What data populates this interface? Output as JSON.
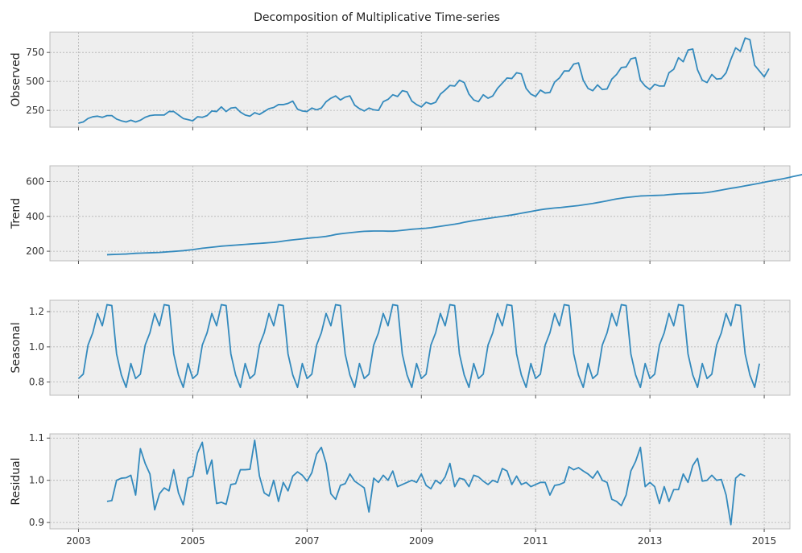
{
  "chart_data": {
    "type": "line",
    "title": "Decomposition of Multiplicative Time-series",
    "x_start": "2003-01",
    "x_step": "month",
    "x_ticks": [
      "2003",
      "2005",
      "2007",
      "2009",
      "2011",
      "2013",
      "2015"
    ],
    "xlim": [
      2002.5,
      2015.45
    ],
    "line_color": "#348abd",
    "grid": true,
    "panels": [
      {
        "ylabel": "Observed",
        "ylim": [
          105,
          925
        ],
        "yticks": [
          "250",
          "500",
          "750"
        ],
        "ytick_values": [
          250,
          500,
          750
        ],
        "x_offset_months": 0,
        "values": [
          140,
          150,
          180,
          195,
          200,
          190,
          205,
          205,
          175,
          160,
          150,
          165,
          150,
          165,
          190,
          205,
          210,
          210,
          210,
          240,
          240,
          210,
          180,
          170,
          160,
          195,
          190,
          205,
          245,
          240,
          280,
          240,
          270,
          275,
          235,
          210,
          200,
          230,
          215,
          240,
          265,
          275,
          300,
          300,
          310,
          330,
          260,
          245,
          240,
          270,
          255,
          270,
          325,
          355,
          375,
          340,
          365,
          375,
          295,
          265,
          245,
          270,
          255,
          250,
          325,
          345,
          385,
          370,
          420,
          410,
          330,
          300,
          280,
          320,
          305,
          320,
          390,
          425,
          465,
          460,
          510,
          490,
          390,
          340,
          325,
          385,
          355,
          375,
          440,
          485,
          530,
          525,
          575,
          565,
          440,
          390,
          370,
          425,
          400,
          405,
          495,
          530,
          590,
          590,
          650,
          660,
          510,
          440,
          420,
          470,
          430,
          435,
          520,
          560,
          620,
          625,
          695,
          705,
          510,
          460,
          430,
          475,
          460,
          460,
          575,
          605,
          705,
          670,
          770,
          780,
          600,
          510,
          490,
          560,
          520,
          525,
          575,
          690,
          790,
          760,
          875,
          860,
          640,
          590,
          540,
          610
        ]
      },
      {
        "ylabel": "Trend",
        "ylim": [
          145,
          690
        ],
        "yticks": [
          "200",
          "400",
          "600"
        ],
        "ytick_values": [
          200,
          400,
          600
        ],
        "x_offset_months": 6,
        "values": [
          180,
          181,
          182,
          183,
          184,
          186,
          188,
          189,
          190,
          191,
          192,
          193,
          195,
          197,
          199,
          201,
          203,
          206,
          209,
          213,
          217,
          220,
          223,
          226,
          229,
          231,
          233,
          235,
          237,
          239,
          241,
          243,
          245,
          247,
          249,
          251,
          254,
          258,
          262,
          265,
          268,
          271,
          274,
          277,
          279,
          282,
          285,
          290,
          296,
          300,
          303,
          306,
          309,
          312,
          314,
          315,
          316,
          316,
          316,
          315,
          315,
          317,
          320,
          323,
          326,
          328,
          330,
          332,
          335,
          339,
          343,
          347,
          351,
          355,
          360,
          366,
          371,
          376,
          380,
          384,
          388,
          392,
          396,
          400,
          404,
          408,
          413,
          418,
          423,
          428,
          433,
          438,
          442,
          445,
          448,
          450,
          453,
          456,
          459,
          462,
          466,
          470,
          474,
          479,
          484,
          489,
          495,
          500,
          504,
          508,
          511,
          514,
          517,
          518,
          519,
          520,
          521,
          522,
          525,
          527,
          529,
          530,
          531,
          532,
          533,
          534,
          537,
          541,
          546,
          551,
          556,
          561,
          565,
          570,
          575,
          580,
          585,
          590,
          596,
          601,
          606,
          611,
          616,
          622,
          628,
          634,
          640,
          645,
          650,
          654,
          658,
          662
        ]
      },
      {
        "ylabel": "Seasonal",
        "ylim": [
          0.725,
          1.265
        ],
        "yticks": [
          "0.8",
          "1.0",
          "1.2"
        ],
        "ytick_values": [
          0.8,
          1.0,
          1.2
        ],
        "x_offset_months": 0,
        "values": [
          0.82,
          0.845,
          1.01,
          1.08,
          1.19,
          1.12,
          1.24,
          1.235,
          0.96,
          0.84,
          0.77,
          0.905,
          0.82,
          0.845,
          1.01,
          1.08,
          1.19,
          1.12,
          1.24,
          1.235,
          0.96,
          0.84,
          0.77,
          0.905,
          0.82,
          0.845,
          1.01,
          1.08,
          1.19,
          1.12,
          1.24,
          1.235,
          0.96,
          0.84,
          0.77,
          0.905,
          0.82,
          0.845,
          1.01,
          1.08,
          1.19,
          1.12,
          1.24,
          1.235,
          0.96,
          0.84,
          0.77,
          0.905,
          0.82,
          0.845,
          1.01,
          1.08,
          1.19,
          1.12,
          1.24,
          1.235,
          0.96,
          0.84,
          0.77,
          0.905,
          0.82,
          0.845,
          1.01,
          1.08,
          1.19,
          1.12,
          1.24,
          1.235,
          0.96,
          0.84,
          0.77,
          0.905,
          0.82,
          0.845,
          1.01,
          1.08,
          1.19,
          1.12,
          1.24,
          1.235,
          0.96,
          0.84,
          0.77,
          0.905,
          0.82,
          0.845,
          1.01,
          1.08,
          1.19,
          1.12,
          1.24,
          1.235,
          0.96,
          0.84,
          0.77,
          0.905,
          0.82,
          0.845,
          1.01,
          1.08,
          1.19,
          1.12,
          1.24,
          1.235,
          0.96,
          0.84,
          0.77,
          0.905,
          0.82,
          0.845,
          1.01,
          1.08,
          1.19,
          1.12,
          1.24,
          1.235,
          0.96,
          0.84,
          0.77,
          0.905,
          0.82,
          0.845,
          1.01,
          1.08,
          1.19,
          1.12,
          1.24,
          1.235,
          0.96,
          0.84,
          0.77,
          0.905,
          0.82,
          0.845,
          1.01,
          1.08,
          1.19,
          1.12,
          1.24,
          1.235,
          0.96,
          0.84,
          0.77,
          0.905
        ]
      },
      {
        "ylabel": "Residual",
        "ylim": [
          0.885,
          1.11
        ],
        "yticks": [
          "0.9",
          "1.0",
          "1.1"
        ],
        "ytick_values": [
          0.9,
          1.0,
          1.1
        ],
        "x_offset_months": 6,
        "values": [
          0.95,
          0.952,
          1.0,
          1.005,
          1.006,
          1.012,
          0.965,
          1.075,
          1.04,
          1.015,
          0.93,
          0.968,
          0.982,
          0.975,
          1.025,
          0.97,
          0.942,
          1.005,
          1.01,
          1.065,
          1.09,
          1.015,
          1.048,
          0.945,
          0.948,
          0.943,
          0.99,
          0.992,
          1.025,
          1.025,
          1.026,
          1.095,
          1.01,
          0.97,
          0.963,
          1.0,
          0.95,
          0.995,
          0.975,
          1.01,
          1.02,
          1.012,
          0.998,
          1.018,
          1.062,
          1.078,
          1.04,
          0.968,
          0.955,
          0.988,
          0.992,
          1.015,
          0.998,
          0.99,
          0.982,
          0.925,
          1.005,
          0.995,
          1.012,
          1.0,
          1.022,
          0.985,
          0.99,
          0.995,
          1.0,
          0.995,
          1.015,
          0.988,
          0.98,
          1.0,
          0.992,
          1.008,
          1.04,
          0.985,
          1.005,
          1.002,
          0.985,
          1.012,
          1.008,
          0.998,
          0.99,
          1.0,
          0.995,
          1.028,
          1.022,
          0.99,
          1.01,
          0.99,
          0.995,
          0.985,
          0.99,
          0.995,
          0.995,
          0.965,
          0.988,
          0.99,
          0.995,
          1.032,
          1.025,
          1.03,
          1.022,
          1.015,
          1.005,
          1.022,
          1.0,
          0.995,
          0.955,
          0.95,
          0.94,
          0.965,
          1.022,
          1.045,
          1.078,
          0.985,
          0.995,
          0.985,
          0.945,
          0.985,
          0.95,
          0.978,
          0.978,
          1.015,
          0.995,
          1.035,
          1.052,
          0.998,
          1.0,
          1.012,
          1.0,
          1.002,
          0.965,
          0.895,
          1.005,
          1.015,
          1.01
        ]
      }
    ]
  }
}
